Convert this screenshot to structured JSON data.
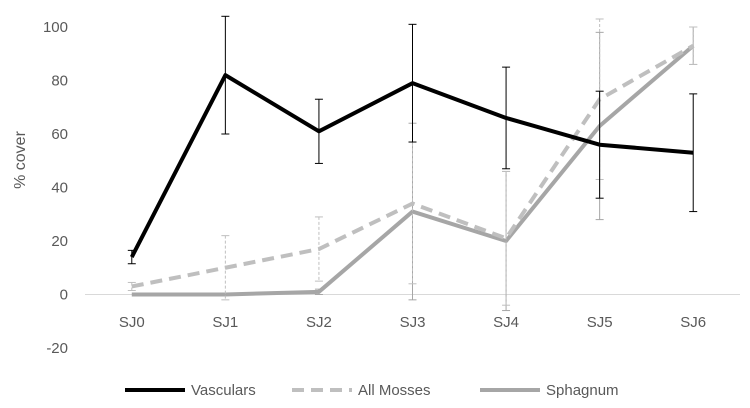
{
  "chart_data": {
    "type": "line",
    "categories": [
      "SJ0",
      "SJ1",
      "SJ2",
      "SJ3",
      "SJ4",
      "SJ5",
      "SJ6"
    ],
    "ylabel": "% cover",
    "xlabel": "",
    "ylim": [
      -20,
      100
    ],
    "yticks": [
      -20,
      0,
      20,
      40,
      60,
      80,
      100
    ],
    "grid": false,
    "legend_position": "bottom",
    "series": [
      {
        "name": "Vasculars",
        "style": "solid",
        "color": "#000000",
        "values": [
          14,
          82,
          61,
          79,
          66,
          56,
          53
        ],
        "error": [
          2.5,
          22,
          12,
          22,
          19,
          20,
          22
        ]
      },
      {
        "name": "All Mosses",
        "style": "dashed",
        "color": "#BFBFBF",
        "values": [
          3,
          10,
          17,
          34,
          21,
          73,
          93
        ],
        "error": [
          1.5,
          12,
          12,
          30,
          25,
          30,
          7
        ]
      },
      {
        "name": "Sphagnum",
        "style": "solid",
        "color": "#A6A6A6",
        "values": [
          0,
          0,
          1,
          31,
          20,
          63,
          93
        ],
        "error": [
          0,
          0,
          1,
          33,
          26,
          35,
          7
        ]
      }
    ]
  }
}
